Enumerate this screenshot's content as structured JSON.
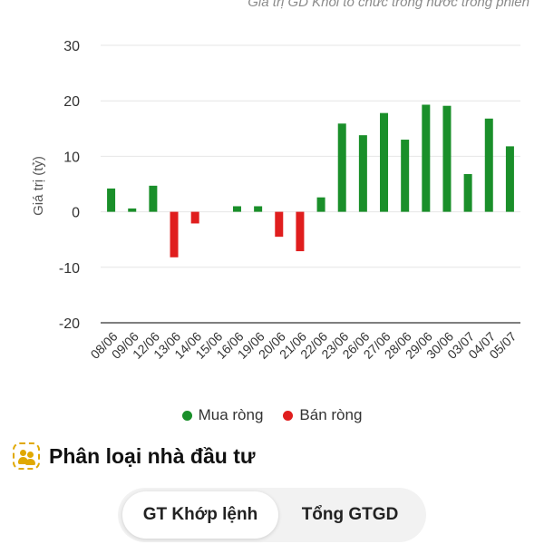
{
  "chart_data": {
    "type": "bar",
    "title": "Giá trị GD Khối tổ chức trong nước trong phiên",
    "ylabel": "Giá trị (tỷ)",
    "xlabel": "",
    "ylim": [
      -20,
      30
    ],
    "yticks": [
      30,
      20,
      10,
      0,
      -10,
      -20
    ],
    "grid": true,
    "legend_position": "bottom",
    "categories": [
      "08/06",
      "09/06",
      "12/06",
      "13/06",
      "14/06",
      "15/06",
      "16/06",
      "19/06",
      "20/06",
      "21/06",
      "22/06",
      "23/06",
      "26/06",
      "27/06",
      "28/06",
      "29/06",
      "30/06",
      "03/07",
      "04/07",
      "05/07"
    ],
    "values": [
      4.2,
      0.6,
      4.7,
      -8.2,
      -2.1,
      0,
      1.0,
      1.0,
      -4.5,
      -7.1,
      2.6,
      15.9,
      13.8,
      17.8,
      13.0,
      19.3,
      19.1,
      6.8,
      16.8,
      11.8
    ],
    "legend": [
      {
        "label": "Mua ròng",
        "color": "#1a8f2a"
      },
      {
        "label": "Bán ròng",
        "color": "#e01e1e"
      }
    ],
    "positive_color": "#1a8f2a",
    "negative_color": "#e01e1e"
  },
  "section": {
    "icon": "investors-icon",
    "title": "Phân loại nhà đầu tư"
  },
  "tabs": [
    {
      "label": "GT Khớp lệnh",
      "active": true
    },
    {
      "label": "Tổng GTGD",
      "active": false
    }
  ]
}
